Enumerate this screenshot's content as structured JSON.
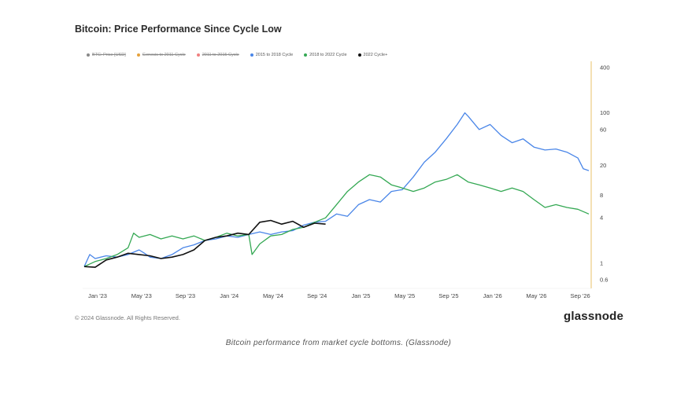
{
  "chart_data": {
    "type": "line",
    "title": "Bitcoin: Price Performance Since Cycle Low",
    "legend": {
      "placement": "top",
      "entries": [
        {
          "label": "BTC: Price [USD]",
          "color": "#888888",
          "struck": true
        },
        {
          "label": "Genesis to 2011 Cycle",
          "color": "#e6a23c",
          "struck": true
        },
        {
          "label": "2011 to 2015 Cycle",
          "color": "#f08080",
          "struck": true
        },
        {
          "label": "2015 to 2018 Cycle",
          "color": "#4a86e8",
          "struck": false
        },
        {
          "label": "2018 to 2022 Cycle",
          "color": "#34a853",
          "struck": false
        },
        {
          "label": "2022 Cycle+",
          "color": "#111111",
          "struck": false
        }
      ]
    },
    "x_ticks": [
      "Jan '23",
      "May '23",
      "Sep '23",
      "Jan '24",
      "May '24",
      "Sep '24",
      "Jan '25",
      "May '25",
      "Sep '25",
      "Jan '26",
      "May '26",
      "Sep '26"
    ],
    "y_ticks": [
      400,
      100,
      60,
      20,
      8,
      4,
      1,
      0.6
    ],
    "y_scale": "log",
    "ylim": [
      0.6,
      400
    ],
    "x_range_months": [
      0,
      46
    ],
    "grid": false,
    "series": [
      {
        "name": "2015 to 2018 Cycle",
        "color": "#4a86e8",
        "points": [
          [
            0,
            0.9
          ],
          [
            0.5,
            1.3
          ],
          [
            1,
            1.15
          ],
          [
            2,
            1.25
          ],
          [
            3,
            1.2
          ],
          [
            4,
            1.3
          ],
          [
            5,
            1.5
          ],
          [
            5.5,
            1.35
          ],
          [
            6,
            1.2
          ],
          [
            7,
            1.15
          ],
          [
            8,
            1.3
          ],
          [
            9,
            1.6
          ],
          [
            10,
            1.75
          ],
          [
            11,
            2.0
          ],
          [
            12,
            2.1
          ],
          [
            13,
            2.3
          ],
          [
            14,
            2.2
          ],
          [
            15,
            2.4
          ],
          [
            16,
            2.6
          ],
          [
            17,
            2.4
          ],
          [
            18,
            2.6
          ],
          [
            19,
            2.7
          ],
          [
            20,
            3.2
          ],
          [
            21,
            3.5
          ],
          [
            22,
            3.6
          ],
          [
            23,
            4.5
          ],
          [
            24,
            4.2
          ],
          [
            25,
            6.0
          ],
          [
            26,
            7.0
          ],
          [
            27,
            6.5
          ],
          [
            28,
            9.0
          ],
          [
            29,
            9.5
          ],
          [
            30,
            14
          ],
          [
            31,
            22
          ],
          [
            32,
            30
          ],
          [
            33,
            45
          ],
          [
            34,
            70
          ],
          [
            34.7,
            100
          ],
          [
            35,
            90
          ],
          [
            36,
            60
          ],
          [
            37,
            70
          ],
          [
            38,
            50
          ],
          [
            39,
            40
          ],
          [
            40,
            45
          ],
          [
            41,
            35
          ],
          [
            42,
            32
          ],
          [
            43,
            33
          ],
          [
            44,
            30
          ],
          [
            45,
            25
          ],
          [
            45.5,
            18
          ],
          [
            46,
            17
          ]
        ]
      },
      {
        "name": "2018 to 2022 Cycle",
        "color": "#34a853",
        "points": [
          [
            0,
            0.9
          ],
          [
            1,
            1.05
          ],
          [
            2,
            1.15
          ],
          [
            3,
            1.3
          ],
          [
            4,
            1.6
          ],
          [
            4.5,
            2.5
          ],
          [
            5,
            2.2
          ],
          [
            6,
            2.4
          ],
          [
            7,
            2.1
          ],
          [
            8,
            2.3
          ],
          [
            9,
            2.1
          ],
          [
            10,
            2.3
          ],
          [
            11,
            2.0
          ],
          [
            12,
            2.2
          ],
          [
            13,
            2.5
          ],
          [
            14,
            2.3
          ],
          [
            15,
            2.4
          ],
          [
            15.3,
            1.3
          ],
          [
            16,
            1.8
          ],
          [
            17,
            2.3
          ],
          [
            18,
            2.4
          ],
          [
            19,
            2.8
          ],
          [
            20,
            3.0
          ],
          [
            21,
            3.5
          ],
          [
            22,
            4.0
          ],
          [
            23,
            6.0
          ],
          [
            24,
            9.0
          ],
          [
            25,
            12
          ],
          [
            26,
            15
          ],
          [
            27,
            14
          ],
          [
            28,
            11
          ],
          [
            29,
            10
          ],
          [
            30,
            9
          ],
          [
            31,
            10
          ],
          [
            32,
            12
          ],
          [
            33,
            13
          ],
          [
            34,
            15
          ],
          [
            35,
            12
          ],
          [
            36,
            11
          ],
          [
            37,
            10
          ],
          [
            38,
            9
          ],
          [
            39,
            10
          ],
          [
            40,
            9
          ],
          [
            41,
            7
          ],
          [
            42,
            5.5
          ],
          [
            43,
            6.0
          ],
          [
            44,
            5.5
          ],
          [
            45,
            5.2
          ],
          [
            46,
            4.5
          ]
        ]
      },
      {
        "name": "2022 Cycle+",
        "color": "#111111",
        "points": [
          [
            0,
            0.9
          ],
          [
            1,
            0.88
          ],
          [
            2,
            1.1
          ],
          [
            3,
            1.2
          ],
          [
            4,
            1.35
          ],
          [
            5,
            1.3
          ],
          [
            6,
            1.25
          ],
          [
            7,
            1.15
          ],
          [
            8,
            1.2
          ],
          [
            9,
            1.3
          ],
          [
            10,
            1.5
          ],
          [
            11,
            2.0
          ],
          [
            12,
            2.2
          ],
          [
            13,
            2.3
          ],
          [
            14,
            2.5
          ],
          [
            15,
            2.4
          ],
          [
            16,
            3.5
          ],
          [
            17,
            3.7
          ],
          [
            18,
            3.3
          ],
          [
            19,
            3.6
          ],
          [
            20,
            3.0
          ],
          [
            21,
            3.4
          ],
          [
            22,
            3.3
          ]
        ]
      }
    ]
  },
  "footer": {
    "copyright": "© 2024 Glassnode. All Rights Reserved.",
    "brand": "glassnode"
  },
  "caption": "Bitcoin performance from market cycle bottoms. (Glassnode)"
}
